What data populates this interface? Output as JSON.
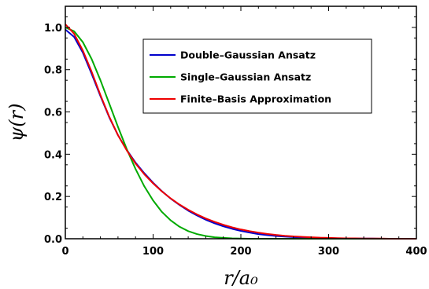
{
  "chart_data": {
    "type": "line",
    "xlabel": "r/a₀",
    "ylabel": "ψ(r)",
    "xlim": [
      0,
      400
    ],
    "ylim": [
      0.0,
      1.1
    ],
    "x_ticks": [
      0,
      100,
      200,
      300,
      400
    ],
    "y_ticks": [
      0.0,
      0.2,
      0.4,
      0.6,
      0.8,
      1.0
    ],
    "x_tick_labels": [
      "0",
      "100",
      "200",
      "300",
      "400"
    ],
    "y_tick_labels": [
      "0.0",
      "0.2",
      "0.4",
      "0.6",
      "0.8",
      "1.0"
    ],
    "grid": false,
    "legend_position": "top-right",
    "series": [
      {
        "name": "Double–Gaussian Ansatz",
        "color": "#0000cc",
        "x": [
          0,
          10,
          20,
          30,
          40,
          50,
          60,
          70,
          80,
          90,
          100,
          110,
          120,
          130,
          140,
          150,
          160,
          170,
          180,
          190,
          200,
          210,
          220,
          230,
          240,
          250,
          260,
          270,
          280,
          290,
          300,
          310,
          320,
          330,
          340,
          350,
          360,
          370,
          380,
          390,
          400
        ],
        "y": [
          0.99,
          0.955,
          0.88,
          0.78,
          0.675,
          0.575,
          0.49,
          0.42,
          0.36,
          0.31,
          0.265,
          0.225,
          0.19,
          0.16,
          0.133,
          0.11,
          0.09,
          0.073,
          0.059,
          0.047,
          0.037,
          0.029,
          0.022,
          0.017,
          0.013,
          0.01,
          0.008,
          0.006,
          0.005,
          0.004,
          0.003,
          0.002,
          0.002,
          0.001,
          0.001,
          0.001,
          0.0,
          0.0,
          0.0,
          0.0,
          0.0
        ]
      },
      {
        "name": "Single–Gaussian Ansatz",
        "color": "#00aa00",
        "x": [
          0,
          10,
          20,
          30,
          40,
          50,
          60,
          70,
          80,
          90,
          100,
          110,
          120,
          130,
          140,
          150,
          160,
          170,
          180,
          190,
          200,
          210,
          220,
          230,
          240,
          250,
          260,
          270,
          280,
          290,
          300,
          310,
          320,
          330,
          340,
          350,
          360,
          370,
          380,
          390,
          400
        ],
        "y": [
          1.0,
          0.982,
          0.93,
          0.85,
          0.75,
          0.64,
          0.529,
          0.424,
          0.33,
          0.248,
          0.181,
          0.127,
          0.087,
          0.057,
          0.036,
          0.022,
          0.013,
          0.007,
          0.004,
          0.002,
          0.001,
          0.0,
          0.0,
          0.0,
          0.0,
          0.0,
          0.0,
          0.0,
          0.0,
          0.0,
          0.0,
          0.0,
          0.0,
          0.0,
          0.0,
          0.0,
          0.0,
          0.0,
          0.0,
          0.0,
          0.0
        ]
      },
      {
        "name": "Finite–Basis Approximation",
        "color": "#ee0000",
        "x": [
          0,
          10,
          20,
          30,
          40,
          50,
          60,
          70,
          80,
          90,
          100,
          110,
          120,
          130,
          140,
          150,
          160,
          170,
          180,
          190,
          200,
          210,
          220,
          230,
          240,
          250,
          260,
          270,
          280,
          290,
          300,
          310,
          320,
          330,
          340,
          350,
          360,
          370,
          380,
          390,
          400
        ],
        "y": [
          1.015,
          0.97,
          0.89,
          0.79,
          0.68,
          0.578,
          0.49,
          0.418,
          0.356,
          0.305,
          0.262,
          0.224,
          0.191,
          0.162,
          0.137,
          0.115,
          0.096,
          0.08,
          0.066,
          0.054,
          0.044,
          0.036,
          0.029,
          0.023,
          0.018,
          0.014,
          0.011,
          0.009,
          0.007,
          0.005,
          0.004,
          0.003,
          0.002,
          0.002,
          0.001,
          0.001,
          0.001,
          0.0,
          0.0,
          0.0,
          0.0
        ]
      }
    ]
  }
}
